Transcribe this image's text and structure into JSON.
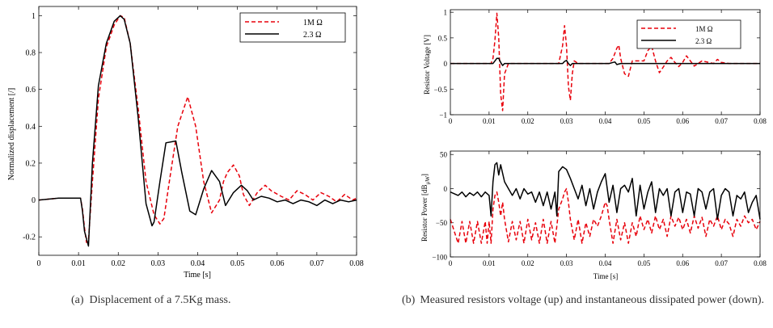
{
  "captions": {
    "a_label": "(a)",
    "a_text": "Displacement of a 7.5Kg mass.",
    "b_label": "(b)",
    "b_text": "Measured resistors voltage (up) and instantaneous dissipated power (down)."
  },
  "colors": {
    "series_1M": "#e8000b",
    "series_2_3": "#000000"
  },
  "chart_data": [
    {
      "id": "a",
      "type": "line",
      "title": "",
      "xlabel": "Time [s]",
      "ylabel": "Normalized displacement [/]",
      "xlim": [
        0,
        0.08
      ],
      "ylim": [
        -0.3,
        1.05
      ],
      "xticks": [
        0,
        0.01,
        0.02,
        0.03,
        0.04,
        0.05,
        0.06,
        0.07,
        0.08
      ],
      "xticklabels": [
        "0",
        "0.01",
        "0.02",
        "0.03",
        "0.04",
        "0.05",
        "0.06",
        "0.07",
        "0.08"
      ],
      "yticks": [
        -0.2,
        0,
        0.2,
        0.4,
        0.6,
        0.8,
        1
      ],
      "yticklabels": [
        "-0.2",
        "0",
        "0.2",
        "0.4",
        "0.6",
        "0.8",
        "1"
      ],
      "grid": false,
      "legend": "top-right",
      "series": [
        {
          "name": "1M Ω",
          "style": "dashed",
          "x": [
            0,
            0.005,
            0.0105,
            0.011,
            0.0115,
            0.012,
            0.0125,
            0.0135,
            0.015,
            0.017,
            0.019,
            0.0205,
            0.0215,
            0.023,
            0.025,
            0.027,
            0.029,
            0.0305,
            0.0315,
            0.033,
            0.035,
            0.0375,
            0.0395,
            0.0415,
            0.0435,
            0.0455,
            0.0465,
            0.0475,
            0.049,
            0.0505,
            0.0515,
            0.053,
            0.055,
            0.057,
            0.0585,
            0.061,
            0.063,
            0.065,
            0.067,
            0.069,
            0.071,
            0.073,
            0.075,
            0.077,
            0.079,
            0.08
          ],
          "y": [
            0,
            0.01,
            0.01,
            -0.05,
            -0.15,
            -0.23,
            -0.22,
            0.1,
            0.55,
            0.83,
            0.95,
            1.0,
            0.99,
            0.85,
            0.5,
            0.1,
            -0.08,
            -0.13,
            -0.1,
            0.12,
            0.4,
            0.56,
            0.4,
            0.1,
            -0.07,
            0.0,
            0.1,
            0.15,
            0.19,
            0.13,
            0.03,
            -0.03,
            0.04,
            0.08,
            0.05,
            0.02,
            0.0,
            0.05,
            0.03,
            0.0,
            0.04,
            0.02,
            -0.01,
            0.03,
            0.0,
            0.01
          ]
        },
        {
          "name": "2.3 Ω",
          "style": "solid",
          "x": [
            0,
            0.005,
            0.0105,
            0.011,
            0.0115,
            0.0125,
            0.0135,
            0.015,
            0.017,
            0.019,
            0.0205,
            0.0215,
            0.023,
            0.025,
            0.027,
            0.0285,
            0.029,
            0.0305,
            0.032,
            0.0345,
            0.036,
            0.038,
            0.0395,
            0.0415,
            0.0435,
            0.0455,
            0.047,
            0.049,
            0.051,
            0.0525,
            0.054,
            0.056,
            0.058,
            0.06,
            0.062,
            0.064,
            0.066,
            0.068,
            0.07,
            0.072,
            0.074,
            0.076,
            0.078,
            0.08
          ],
          "y": [
            0,
            0.01,
            0.01,
            -0.06,
            -0.17,
            -0.25,
            0.2,
            0.62,
            0.85,
            0.97,
            1.0,
            0.98,
            0.85,
            0.45,
            -0.02,
            -0.14,
            -0.12,
            0.1,
            0.31,
            0.32,
            0.15,
            -0.06,
            -0.08,
            0.06,
            0.16,
            0.1,
            -0.03,
            0.04,
            0.08,
            0.05,
            0.0,
            0.02,
            0.01,
            -0.01,
            0.0,
            -0.02,
            0.0,
            -0.01,
            -0.03,
            0.0,
            -0.02,
            0.0,
            -0.01,
            0.0
          ]
        }
      ]
    },
    {
      "id": "b_up",
      "type": "line",
      "title": "",
      "xlabel": "",
      "ylabel": "Resistor Voltage [V]",
      "xlim": [
        0,
        0.08
      ],
      "ylim": [
        -1,
        1.05
      ],
      "xticks": [
        0,
        0.01,
        0.02,
        0.03,
        0.04,
        0.05,
        0.06,
        0.07,
        0.08
      ],
      "xticklabels": [
        "0",
        "0.01",
        "0.02",
        "0.03",
        "0.04",
        "0.05",
        "0.06",
        "0.07",
        "0.08"
      ],
      "yticks": [
        -1,
        -0.5,
        0,
        0.5,
        1
      ],
      "yticklabels": [
        "−1",
        "−0.5",
        "0",
        "0.5",
        "1"
      ],
      "grid": false,
      "legend": "top-right",
      "series": [
        {
          "name": "1M Ω",
          "style": "dashed",
          "x": [
            0,
            0.0105,
            0.011,
            0.0115,
            0.012,
            0.0125,
            0.013,
            0.0135,
            0.014,
            0.015,
            0.028,
            0.029,
            0.0295,
            0.03,
            0.0305,
            0.031,
            0.0315,
            0.032,
            0.033,
            0.041,
            0.042,
            0.043,
            0.0435,
            0.044,
            0.045,
            0.046,
            0.047,
            0.05,
            0.051,
            0.052,
            0.053,
            0.054,
            0.055,
            0.056,
            0.057,
            0.058,
            0.059,
            0.06,
            0.061,
            0.062,
            0.063,
            0.064,
            0.065,
            0.068,
            0.069,
            0.07,
            0.072,
            0.08
          ],
          "y": [
            0,
            0,
            0.1,
            0.45,
            0.98,
            0.5,
            -0.6,
            -0.92,
            -0.2,
            0,
            0,
            0.35,
            0.74,
            0.35,
            -0.45,
            -0.72,
            -0.2,
            0.05,
            0,
            0,
            0.1,
            0.3,
            0.36,
            0.1,
            -0.2,
            -0.25,
            0.05,
            0.05,
            0.25,
            0.34,
            0.05,
            -0.18,
            -0.07,
            0.05,
            0.12,
            0.02,
            -0.06,
            0.02,
            0.15,
            0.05,
            -0.05,
            0.0,
            0.05,
            0.0,
            0.08,
            0.02,
            0.0,
            0.0
          ]
        },
        {
          "name": "2.3 Ω",
          "style": "solid",
          "x": [
            0,
            0.011,
            0.0115,
            0.012,
            0.0125,
            0.013,
            0.0135,
            0.014,
            0.029,
            0.0295,
            0.03,
            0.0305,
            0.031,
            0.0315,
            0.041,
            0.042,
            0.0425,
            0.043,
            0.044,
            0.08
          ],
          "y": [
            0,
            0,
            0.05,
            0.1,
            0.1,
            0.02,
            -0.04,
            0,
            0,
            0.04,
            0.06,
            0.0,
            -0.04,
            0,
            0,
            0.02,
            0.03,
            -0.02,
            0,
            0
          ]
        }
      ]
    },
    {
      "id": "b_down",
      "type": "line",
      "title": "",
      "xlabel": "Time [s]",
      "ylabel": "Resistor Power [dB",
      "ylabel_sub": "μW",
      "ylabel_close": "]",
      "xlim": [
        0,
        0.08
      ],
      "ylim": [
        -100,
        55
      ],
      "xticks": [
        0,
        0.01,
        0.02,
        0.03,
        0.04,
        0.05,
        0.06,
        0.07,
        0.08
      ],
      "xticklabels": [
        "0",
        "0.01",
        "0.02",
        "0.03",
        "0.04",
        "0.05",
        "0.06",
        "0.07",
        "0.08"
      ],
      "yticks": [
        -100,
        -50,
        0,
        50
      ],
      "yticklabels": [
        "−100",
        "−50",
        "0",
        "50"
      ],
      "grid": false,
      "legend": "none",
      "series": [
        {
          "name": "1M Ω",
          "style": "dashed",
          "x": [
            0,
            0.002,
            0.003,
            0.004,
            0.005,
            0.006,
            0.007,
            0.008,
            0.009,
            0.0095,
            0.01,
            0.0105,
            0.011,
            0.0115,
            0.012,
            0.0125,
            0.013,
            0.0135,
            0.014,
            0.015,
            0.016,
            0.017,
            0.018,
            0.019,
            0.02,
            0.021,
            0.022,
            0.023,
            0.024,
            0.025,
            0.026,
            0.027,
            0.028,
            0.029,
            0.0295,
            0.03,
            0.0305,
            0.031,
            0.032,
            0.033,
            0.034,
            0.035,
            0.036,
            0.037,
            0.038,
            0.039,
            0.04,
            0.0405,
            0.041,
            0.042,
            0.043,
            0.044,
            0.045,
            0.046,
            0.047,
            0.048,
            0.049,
            0.05,
            0.051,
            0.052,
            0.053,
            0.054,
            0.055,
            0.056,
            0.057,
            0.058,
            0.059,
            0.06,
            0.061,
            0.062,
            0.063,
            0.064,
            0.065,
            0.066,
            0.067,
            0.068,
            0.069,
            0.07,
            0.071,
            0.072,
            0.073,
            0.074,
            0.075,
            0.076,
            0.077,
            0.078,
            0.079,
            0.08
          ],
          "y": [
            -45,
            -80,
            -48,
            -80,
            -48,
            -80,
            -48,
            -80,
            -48,
            -80,
            -48,
            -80,
            -30,
            -10,
            -5,
            -20,
            -40,
            -20,
            -45,
            -78,
            -48,
            -75,
            -48,
            -80,
            -45,
            -75,
            -50,
            -80,
            -45,
            -80,
            -48,
            -80,
            -30,
            -15,
            -5,
            0,
            -20,
            -45,
            -75,
            -45,
            -80,
            -50,
            -70,
            -45,
            -55,
            -40,
            -20,
            -25,
            -45,
            -80,
            -45,
            -75,
            -50,
            -80,
            -50,
            -70,
            -40,
            -60,
            -45,
            -65,
            -40,
            -60,
            -45,
            -70,
            -40,
            -55,
            -42,
            -60,
            -45,
            -65,
            -40,
            -58,
            -42,
            -70,
            -45,
            -55,
            -40,
            -60,
            -45,
            -52,
            -70,
            -45,
            -55,
            -40,
            -50,
            -45,
            -60,
            -48
          ]
        },
        {
          "name": "2.3 Ω",
          "style": "solid",
          "x": [
            0,
            0.002,
            0.003,
            0.004,
            0.005,
            0.006,
            0.007,
            0.008,
            0.009,
            0.01,
            0.0105,
            0.011,
            0.0115,
            0.012,
            0.0125,
            0.013,
            0.014,
            0.015,
            0.016,
            0.017,
            0.018,
            0.019,
            0.02,
            0.021,
            0.022,
            0.023,
            0.024,
            0.025,
            0.026,
            0.027,
            0.0275,
            0.028,
            0.029,
            0.03,
            0.031,
            0.032,
            0.033,
            0.034,
            0.035,
            0.036,
            0.037,
            0.038,
            0.039,
            0.04,
            0.041,
            0.042,
            0.043,
            0.044,
            0.045,
            0.046,
            0.047,
            0.048,
            0.049,
            0.05,
            0.051,
            0.052,
            0.053,
            0.054,
            0.055,
            0.056,
            0.057,
            0.058,
            0.059,
            0.06,
            0.061,
            0.062,
            0.063,
            0.064,
            0.065,
            0.066,
            0.067,
            0.068,
            0.069,
            0.07,
            0.071,
            0.072,
            0.073,
            0.074,
            0.075,
            0.076,
            0.077,
            0.078,
            0.079,
            0.08
          ],
          "y": [
            -5,
            -10,
            -5,
            -12,
            -6,
            -10,
            -5,
            -12,
            -5,
            -10,
            -40,
            10,
            35,
            38,
            20,
            35,
            10,
            0,
            -10,
            0,
            -15,
            0,
            -8,
            -5,
            -20,
            -5,
            -25,
            -5,
            -30,
            -5,
            -40,
            25,
            32,
            28,
            15,
            0,
            -15,
            5,
            -25,
            0,
            -30,
            -5,
            10,
            22,
            -20,
            5,
            -35,
            0,
            5,
            -5,
            15,
            -40,
            5,
            -30,
            -5,
            10,
            -35,
            0,
            -10,
            0,
            -40,
            -5,
            0,
            -35,
            -5,
            -8,
            -40,
            0,
            -5,
            -30,
            -5,
            0,
            -45,
            -10,
            0,
            -5,
            -40,
            -10,
            -15,
            -5,
            -35,
            -20,
            -10,
            -45
          ]
        }
      ]
    }
  ]
}
